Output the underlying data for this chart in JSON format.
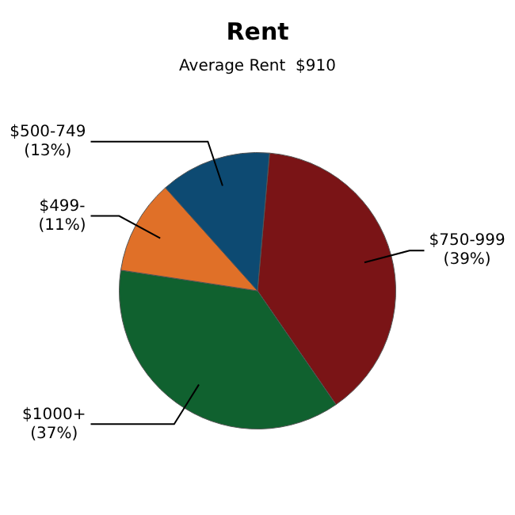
{
  "chart_data": {
    "type": "pie",
    "title": "Rent",
    "subtitle": "Average Rent  $910",
    "categories": [
      "$750-999",
      "$1000+",
      "$499-",
      "$500-749"
    ],
    "values": [
      39,
      37,
      11,
      13
    ],
    "value_labels": [
      "(39%)",
      "(37%)",
      "(11%)",
      "(13%)"
    ],
    "colors": [
      "#7a1416",
      "#10612f",
      "#e07028",
      "#0d4a72"
    ],
    "legend": false
  }
}
